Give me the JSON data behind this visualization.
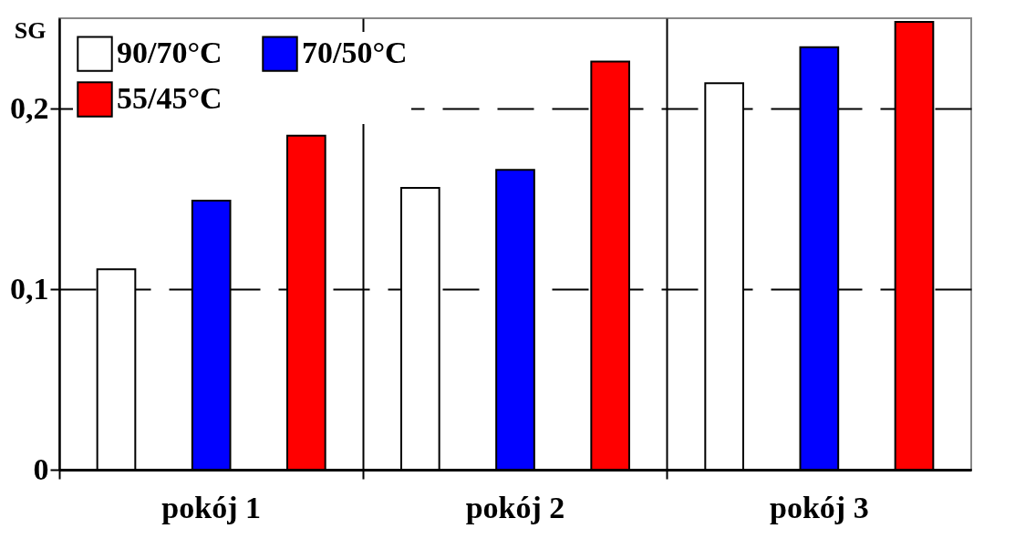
{
  "chart_data": {
    "type": "bar",
    "ylabel": "SG",
    "categories": [
      "pokój 1",
      "pokój 2",
      "pokój 3"
    ],
    "series": [
      {
        "name": "90/70°C",
        "color": "#ffffff",
        "values": [
          0.111,
          0.156,
          0.214
        ]
      },
      {
        "name": "70/50°C",
        "color": "#0000ff",
        "values": [
          0.149,
          0.166,
          0.234
        ]
      },
      {
        "name": "55/45°C",
        "color": "#ff0000",
        "values": [
          0.185,
          0.226,
          0.248
        ]
      }
    ],
    "ylim": [
      0,
      0.25
    ],
    "yticks": [
      {
        "value": 0,
        "label": "0"
      },
      {
        "value": 0.1,
        "label": "0,1"
      },
      {
        "value": 0.2,
        "label": "0,2"
      }
    ],
    "grid": true,
    "legend": "top left"
  }
}
